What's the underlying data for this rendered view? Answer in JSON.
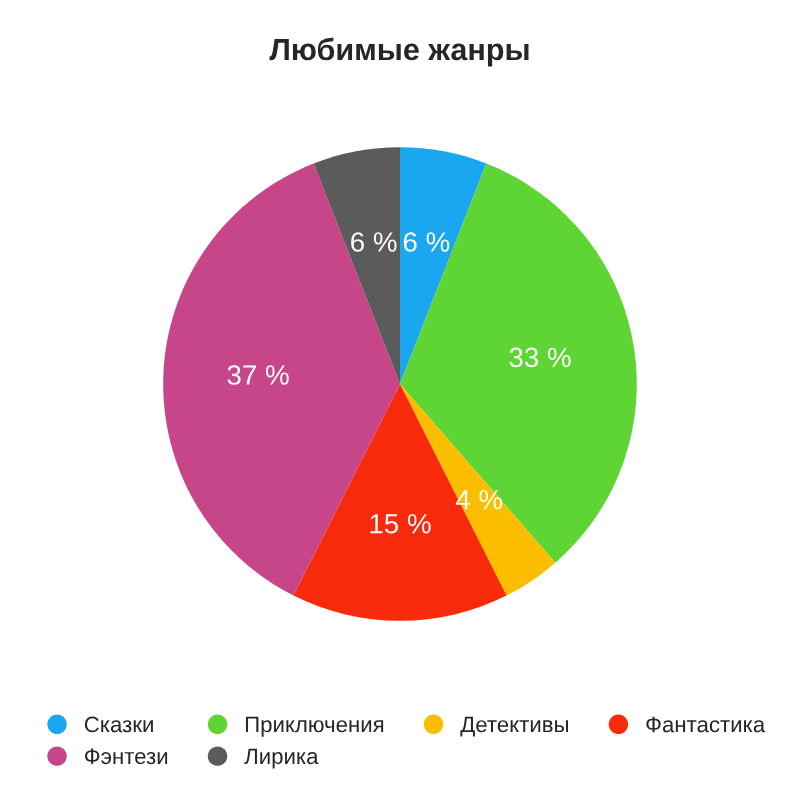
{
  "chart_data": {
    "type": "pie",
    "title": "Любимые жанры",
    "categories": [
      "Сказки",
      "Приключения",
      "Детективы",
      "Фантастика",
      "Фэнтези",
      "Лирика"
    ],
    "values": [
      6,
      33,
      4,
      15,
      37,
      6
    ],
    "value_labels": [
      "6 %",
      "33 %",
      "4 %",
      "15 %",
      "37 %",
      "6 %"
    ],
    "colors": [
      "#1aa7f0",
      "#5ed535",
      "#fbbd00",
      "#f82a0c",
      "#c7468a",
      "#5b5b5b"
    ],
    "legend": "bottom"
  }
}
